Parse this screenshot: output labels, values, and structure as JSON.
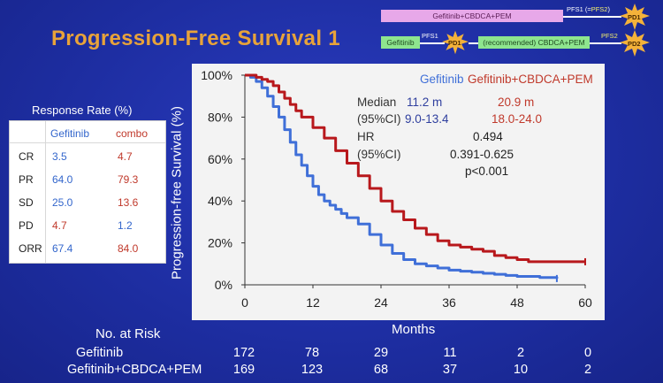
{
  "slide": {
    "title": "Progression-Free Survival 1"
  },
  "schema": {
    "combo_box": "Gefitinib+CBDCA+PEM",
    "gef_box": "Gefitinib",
    "recommended_box": "(recommended) CBDCA+PEM",
    "pfs1_top": "PFS1 (=",
    "pfs2_top": "PFS2",
    "pfs1_top_close": ")",
    "pd1_top": "PD1",
    "pfs1_bottom": "PFS1",
    "pd1_bottom": "PD1",
    "pfs2_bottom": "PFS2",
    "pd2_bottom": "PD2"
  },
  "response_rate": {
    "title": "Response Rate (%)",
    "headers": [
      "",
      "Gefitinib",
      "combo"
    ],
    "rows": [
      [
        "CR",
        "3.5",
        "4.7"
      ],
      [
        "PR",
        "64.0",
        "79.3"
      ],
      [
        "SD",
        "25.0",
        "13.6"
      ],
      [
        "PD",
        "4.7",
        "1.2"
      ],
      [
        "ORR",
        "67.4",
        "84.0"
      ]
    ]
  },
  "annotations": {
    "median_label": "Median",
    "median_gef": "11.2 m",
    "median_combo": "20.9 m",
    "ci_label": "(95%CI)",
    "ci_gef": "9.0-13.4",
    "ci_combo": "18.0-24.0",
    "hr_label": "HR",
    "hr_value": "0.494",
    "hr_ci_label": "(95%CI)",
    "hr_ci": "0.391-0.625",
    "p_value": "p<0.001"
  },
  "risk": {
    "title": "No. at Risk",
    "rows": [
      {
        "name": "Gefitinib",
        "values": [
          "172",
          "78",
          "29",
          "11",
          "2",
          "0"
        ]
      },
      {
        "name": "Gefitinib+CBDCA+PEM",
        "values": [
          "169",
          "123",
          "68",
          "37",
          "10",
          "2"
        ]
      }
    ]
  },
  "colors": {
    "gefitinib": "#3f6fd8",
    "combo": "#b8181c",
    "gef_text": "#3f6fd8",
    "combo_text": "#c0392b"
  },
  "chart_data": {
    "type": "line",
    "title": "",
    "xlabel": "Months",
    "ylabel": "Progression-free Survival (%)",
    "xlim": [
      0,
      60
    ],
    "ylim": [
      0,
      100
    ],
    "xticks": [
      "0",
      "12",
      "24",
      "36",
      "48",
      "60"
    ],
    "xtick_values": [
      0,
      12,
      24,
      36,
      48,
      60
    ],
    "yticks": [
      "0%",
      "20%",
      "40%",
      "60%",
      "80%",
      "100%"
    ],
    "ytick_values": [
      0,
      20,
      40,
      60,
      80,
      100
    ],
    "series": [
      {
        "name": "Gefitinib",
        "x": [
          0,
          1,
          2,
          3,
          4,
          5,
          6,
          7,
          8,
          9,
          10,
          11,
          12,
          13,
          14,
          15,
          16,
          17,
          18,
          20,
          22,
          24,
          26,
          28,
          30,
          32,
          34,
          36,
          38,
          40,
          42,
          44,
          46,
          48,
          50,
          52,
          54,
          55
        ],
        "y": [
          100,
          99,
          97,
          94,
          90,
          85,
          80,
          74,
          68,
          62,
          57,
          52,
          47,
          43,
          40,
          38,
          36,
          34,
          32,
          29,
          24,
          19,
          15,
          12,
          10,
          9,
          8,
          7,
          6.5,
          6,
          5.5,
          5,
          4.5,
          4,
          4,
          3.5,
          3.5,
          3
        ]
      },
      {
        "name": "Gefitinib+CBDCA+PEM",
        "x": [
          0,
          1,
          2,
          3,
          4,
          5,
          6,
          7,
          8,
          9,
          10,
          12,
          14,
          16,
          18,
          20,
          22,
          24,
          26,
          28,
          30,
          32,
          34,
          36,
          38,
          40,
          42,
          44,
          46,
          48,
          50,
          52,
          54,
          56,
          58,
          60
        ],
        "y": [
          100,
          100,
          99,
          98,
          97,
          95,
          92,
          89,
          86,
          83,
          80,
          75,
          70,
          64,
          58,
          52,
          46,
          40,
          35,
          31,
          27,
          24,
          21,
          19,
          18,
          17,
          16,
          14,
          13,
          12,
          11,
          11,
          11,
          11,
          11,
          11
        ]
      }
    ],
    "legend": [
      "Gefitinib",
      "Gefitinib+CBDCA+PEM"
    ],
    "legend_position": "top-right"
  }
}
